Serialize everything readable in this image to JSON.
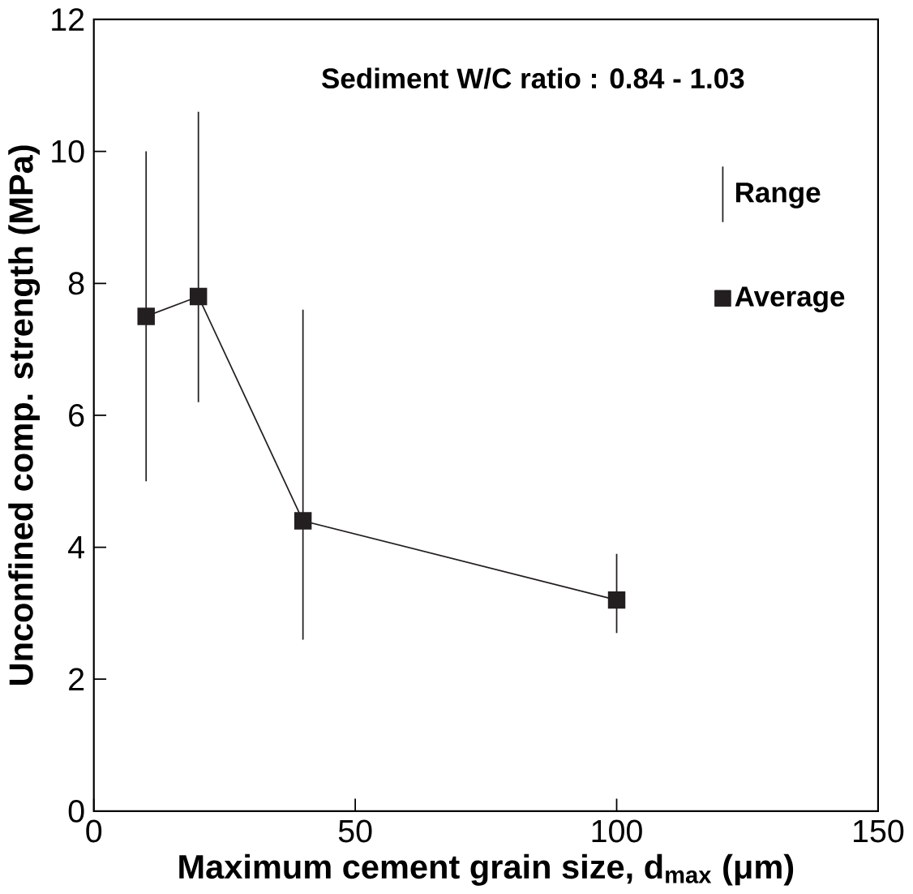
{
  "chart_data": {
    "type": "line",
    "xlabel": "Maximum cement grain size, d$_{max}$ (μm)",
    "ylabel": "Unconfined comp. strength (MPa)",
    "annotations": [
      "Sediment W/C ratio : 0.84 - 1.03",
      "Range"
    ],
    "x": [
      10,
      20,
      40,
      100
    ],
    "series": [
      {
        "name": "Average",
        "color": "#231f20",
        "values": [
          7.5,
          7.8,
          4.4,
          3.2
        ],
        "errors": [
          [
            5.0,
            10.0
          ],
          [
            6.2,
            10.6
          ],
          [
            2.6,
            7.6
          ],
          [
            2.7,
            3.9
          ]
        ]
      }
    ],
    "xlim": [
      0,
      150
    ],
    "ylim": [
      0,
      12
    ],
    "xticks": [
      0,
      50,
      100,
      150
    ],
    "yticks": [
      0,
      2,
      4,
      6,
      8,
      10,
      12
    ],
    "marker": "square",
    "line_style": "solid",
    "grid": false,
    "legend": "top right"
  }
}
